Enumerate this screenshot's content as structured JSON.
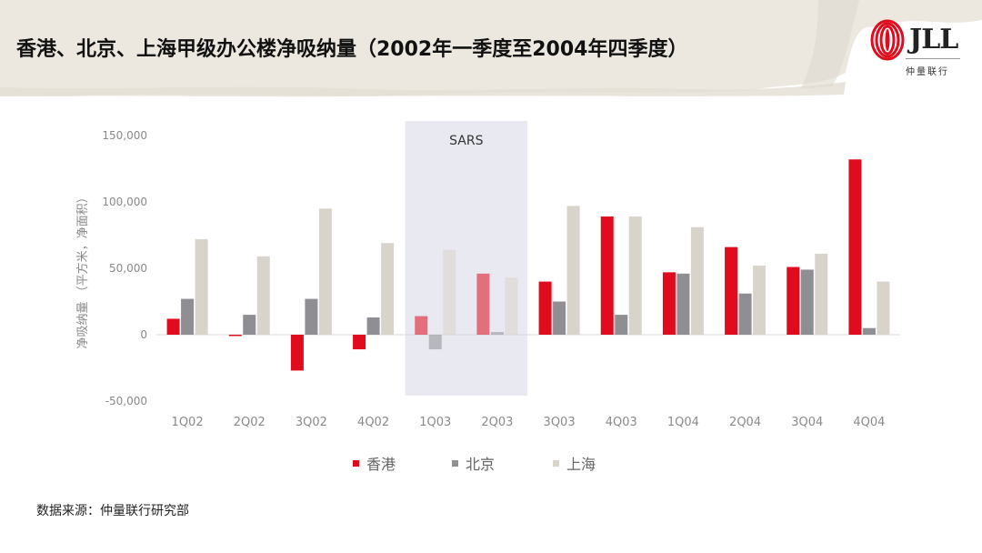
{
  "title": "香港、北京、上海甲级办公楼净吸纳量（2002年一季度至2004年四季度）",
  "logo": {
    "brand": "JLL",
    "subtitle": "仲量联行"
  },
  "source": "数据来源：仲量联行研究部",
  "colors": {
    "hongkong": "#e00b1c",
    "beijing": "#8e8e93",
    "shanghai": "#d9d4cb",
    "sars_shade": "#e9e9f2"
  },
  "chart_data": {
    "type": "bar",
    "ylabel": "净吸纳量 （平方米，净面积）",
    "ylim": [
      -50000,
      150000
    ],
    "yticks": [
      "150,000",
      "100,000",
      "50,000",
      "0",
      "-50,000"
    ],
    "ytick_values": [
      150000,
      100000,
      50000,
      0,
      -50000
    ],
    "categories": [
      "1Q02",
      "2Q02",
      "3Q02",
      "4Q02",
      "1Q03",
      "2Q03",
      "3Q03",
      "4Q03",
      "1Q04",
      "2Q04",
      "3Q04",
      "4Q04"
    ],
    "series": [
      {
        "name": "香港",
        "color": "#e00b1c",
        "values": [
          12000,
          -1000,
          -27000,
          -11000,
          14000,
          46000,
          40000,
          89000,
          47000,
          66000,
          51000,
          132000
        ]
      },
      {
        "name": "北京",
        "color": "#8e8e93",
        "values": [
          27000,
          15000,
          27000,
          13000,
          -11000,
          2000,
          25000,
          15000,
          46000,
          31000,
          49000,
          5000
        ]
      },
      {
        "name": "上海",
        "color": "#d9d4cb",
        "values": [
          72000,
          59000,
          95000,
          69000,
          64000,
          43000,
          97000,
          89000,
          81000,
          52000,
          61000,
          40000
        ]
      }
    ],
    "annotation": {
      "text": "SARS",
      "categories": [
        "1Q03",
        "2Q03"
      ]
    },
    "legend_position": "bottom"
  }
}
